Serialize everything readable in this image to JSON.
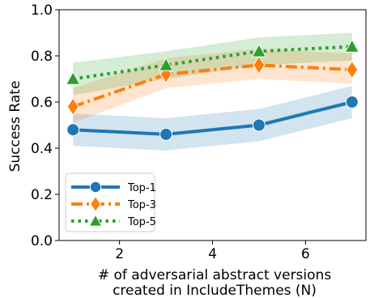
{
  "chart_data": {
    "type": "line",
    "x": [
      1,
      3,
      5,
      7
    ],
    "ylabel": "Success Rate",
    "xlabel_lines": [
      "# of adversarial abstract versions",
      "created in IncludeThemes (N)"
    ],
    "xlim": [
      0.7,
      7.3
    ],
    "ylim": [
      0.0,
      1.0
    ],
    "xticks": [
      2,
      4,
      6
    ],
    "yticks": [
      "0.0",
      "0.2",
      "0.4",
      "0.6",
      "0.8",
      "1.0"
    ],
    "grid": false,
    "legend_position": "lower-left",
    "series": [
      {
        "name": "Top-1",
        "color": "#1f77b4",
        "marker": "circle",
        "dash": "solid",
        "values": [
          0.48,
          0.46,
          0.5,
          0.6
        ],
        "lower": [
          0.41,
          0.39,
          0.43,
          0.53
        ],
        "upper": [
          0.55,
          0.53,
          0.57,
          0.67
        ]
      },
      {
        "name": "Top-3",
        "color": "#ff7f0e",
        "marker": "diamond",
        "dash": "dashdot",
        "values": [
          0.58,
          0.72,
          0.76,
          0.74
        ],
        "lower": [
          0.51,
          0.66,
          0.7,
          0.68
        ],
        "upper": [
          0.66,
          0.79,
          0.83,
          0.81
        ]
      },
      {
        "name": "Top-5",
        "color": "#2ca02c",
        "marker": "triangle",
        "dash": "dotted",
        "values": [
          0.7,
          0.76,
          0.82,
          0.84
        ],
        "lower": [
          0.63,
          0.7,
          0.76,
          0.78
        ],
        "upper": [
          0.77,
          0.82,
          0.88,
          0.9
        ]
      }
    ]
  }
}
